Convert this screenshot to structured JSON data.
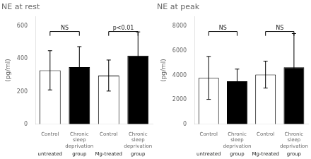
{
  "chart_data": [
    {
      "type": "bar",
      "title": "NE at rest",
      "y_label": "(pg/ml)",
      "categories": [
        "Control",
        "Chronic\nsleep\ndeprivation",
        "Control",
        "Chronic\nsleep\ndeprivation"
      ],
      "values": [
        330,
        350,
        298,
        420
      ],
      "errors": [
        120,
        125,
        95,
        145
      ],
      "colors": [
        "white",
        "black",
        "white",
        "black"
      ],
      "ylim": [
        0,
        660
      ],
      "yticks": [
        0,
        200,
        400,
        600
      ],
      "grid": false,
      "annotations": [
        "NS",
        "p<0.01"
      ],
      "group_labels": [
        "untreated",
        "group",
        "Mg-treated",
        "group"
      ]
    },
    {
      "type": "bar",
      "title": "NE at peak",
      "y_label": "(pg/ml)",
      "categories": [
        "Control",
        "Chronic\nsleep\ndeprivation",
        "Control",
        "Chronic\nsleep\ndeprivation"
      ],
      "values": [
        3780,
        3500,
        4050,
        4650
      ],
      "errors": [
        1750,
        1000,
        1100,
        2750
      ],
      "colors": [
        "white",
        "black",
        "white",
        "black"
      ],
      "ylim": [
        0,
        8800
      ],
      "yticks": [
        0,
        2000,
        4000,
        6000,
        8000
      ],
      "grid": false,
      "annotations": [
        "NS",
        "NS"
      ],
      "group_labels": [
        "untreated",
        "group",
        "Mg-treated",
        "group"
      ]
    }
  ]
}
